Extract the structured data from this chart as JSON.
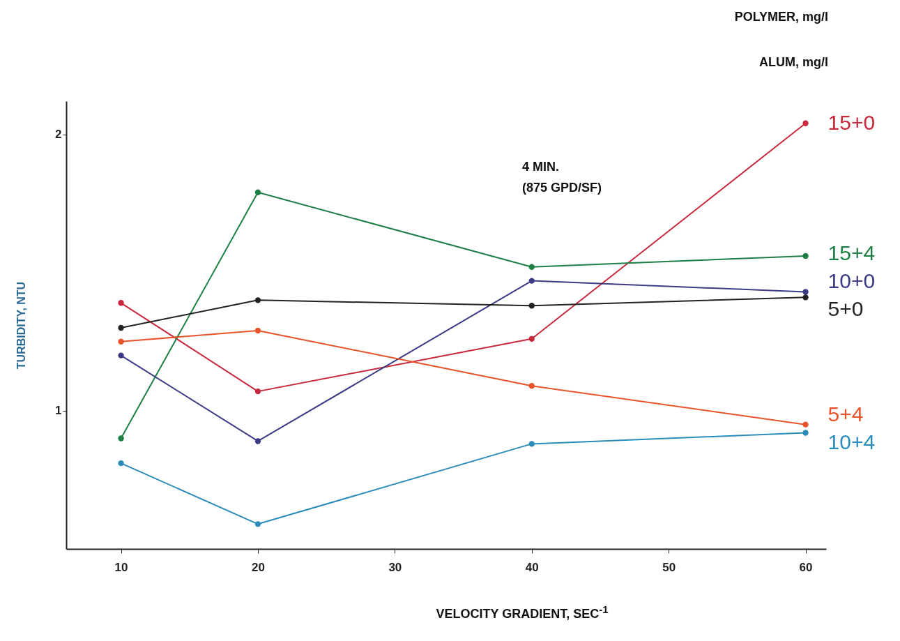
{
  "chart_data": {
    "type": "line",
    "xlabel": "VELOCITY GRADIENT, SEC$^{-1}$",
    "ylabel": "TURBIDITY, NTU",
    "annotations": [
      "4 MIN.",
      "(875 GPD/SF)",
      "POLYMER, mg/l",
      "ALUM, mg/l"
    ],
    "x": [
      10,
      20,
      40,
      60
    ],
    "xlim": [
      6,
      61.5
    ],
    "xticks": [
      10,
      20,
      30,
      40,
      50,
      60
    ],
    "ylim": [
      0.5,
      2.12
    ],
    "yticks": [
      1,
      2
    ],
    "grid": false,
    "marker": "circle",
    "line_style": "solid",
    "series": [
      {
        "name": "15+0",
        "color": "#c8283c",
        "values": [
          1.39,
          1.07,
          1.26,
          2.04
        ]
      },
      {
        "name": "15+4",
        "color": "#1e7f45",
        "values": [
          0.9,
          1.79,
          1.52,
          1.56
        ]
      },
      {
        "name": "10+0",
        "color": "#3b3a85",
        "values": [
          1.2,
          0.89,
          1.47,
          1.43
        ]
      },
      {
        "name": "5+0",
        "color": "#222222",
        "values": [
          1.3,
          1.4,
          1.38,
          1.41
        ]
      },
      {
        "name": "5+4",
        "color": "#e8532a",
        "values": [
          1.25,
          1.29,
          1.09,
          0.95
        ]
      },
      {
        "name": "10+4",
        "color": "#2a8cba",
        "values": [
          0.81,
          0.59,
          0.88,
          0.92
        ]
      }
    ]
  }
}
